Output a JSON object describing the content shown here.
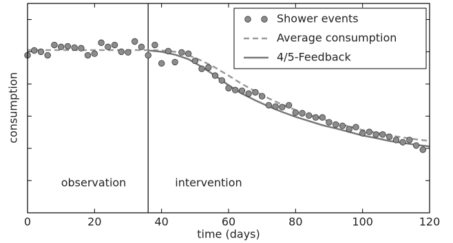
{
  "chart_data": {
    "type": "scatter",
    "xlabel": "time (days)",
    "ylabel": "consumption",
    "xlim": [
      0,
      120
    ],
    "xticks": [
      0,
      20,
      40,
      60,
      80,
      100,
      120
    ],
    "ylim": [
      0,
      6.5
    ],
    "yticks": [
      1,
      2,
      3,
      4,
      5,
      6
    ],
    "vline_x": 36,
    "annotations": [
      "observation",
      "intervention"
    ],
    "legend": "upper right",
    "x": [
      0,
      2,
      4,
      6,
      8,
      10,
      12,
      14,
      16,
      18,
      20,
      22,
      24,
      26,
      28,
      30,
      32,
      34,
      36,
      38,
      40,
      42,
      44,
      46,
      48,
      50,
      52,
      54,
      56,
      58,
      60,
      62,
      64,
      66,
      68,
      70,
      72,
      74,
      76,
      78,
      80,
      82,
      84,
      86,
      88,
      90,
      92,
      94,
      96,
      98,
      100,
      102,
      104,
      106,
      108,
      110,
      112,
      114,
      116,
      118
    ],
    "series": [
      {
        "name": "Shower events",
        "kind": "scatter",
        "color": "#8c8c8c",
        "values": [
          4.89,
          5.04,
          5.0,
          4.89,
          5.21,
          5.15,
          5.17,
          5.13,
          5.11,
          4.89,
          4.94,
          5.28,
          5.15,
          5.21,
          5.0,
          4.98,
          5.32,
          5.15,
          4.89,
          5.21,
          4.64,
          5.02,
          4.68,
          4.98,
          4.94,
          4.72,
          4.47,
          4.51,
          4.26,
          4.11,
          3.87,
          3.81,
          3.79,
          3.7,
          3.74,
          3.62,
          3.34,
          3.3,
          3.28,
          3.34,
          3.11,
          3.09,
          3.02,
          2.96,
          2.96,
          2.81,
          2.74,
          2.7,
          2.6,
          2.66,
          2.47,
          2.51,
          2.43,
          2.43,
          2.36,
          2.26,
          2.19,
          2.26,
          2.09,
          1.96
        ]
      },
      {
        "name": "Average consumption",
        "kind": "dashed",
        "color": "#999999",
        "x": [
          0,
          4,
          8,
          12,
          16,
          20,
          24,
          28,
          32,
          36,
          40,
          44,
          48,
          52,
          56,
          60,
          64,
          68,
          72,
          76,
          80,
          84,
          88,
          92,
          96,
          100,
          104,
          108,
          112,
          116,
          120
        ],
        "values": [
          5.05,
          5.05,
          5.05,
          5.05,
          5.05,
          5.05,
          5.05,
          5.05,
          5.05,
          5.05,
          5.04,
          5.0,
          4.89,
          4.72,
          4.51,
          4.26,
          4.0,
          3.77,
          3.55,
          3.36,
          3.19,
          3.04,
          2.91,
          2.79,
          2.68,
          2.57,
          2.49,
          2.4,
          2.34,
          2.28,
          2.23
        ]
      },
      {
        "name": "4/5-Feedback",
        "kind": "solid",
        "color": "#777777",
        "x": [
          0,
          4,
          8,
          12,
          16,
          20,
          24,
          28,
          32,
          36,
          40,
          44,
          48,
          52,
          56,
          60,
          64,
          68,
          72,
          76,
          80,
          84,
          88,
          92,
          96,
          100,
          104,
          108,
          112,
          116,
          120
        ],
        "values": [
          null,
          null,
          null,
          null,
          null,
          null,
          null,
          null,
          null,
          5.04,
          5.0,
          4.91,
          4.77,
          4.53,
          4.26,
          3.96,
          3.7,
          3.49,
          3.3,
          3.13,
          2.98,
          2.85,
          2.72,
          2.62,
          2.51,
          2.4,
          2.32,
          2.23,
          2.17,
          2.11,
          2.06
        ]
      }
    ]
  }
}
